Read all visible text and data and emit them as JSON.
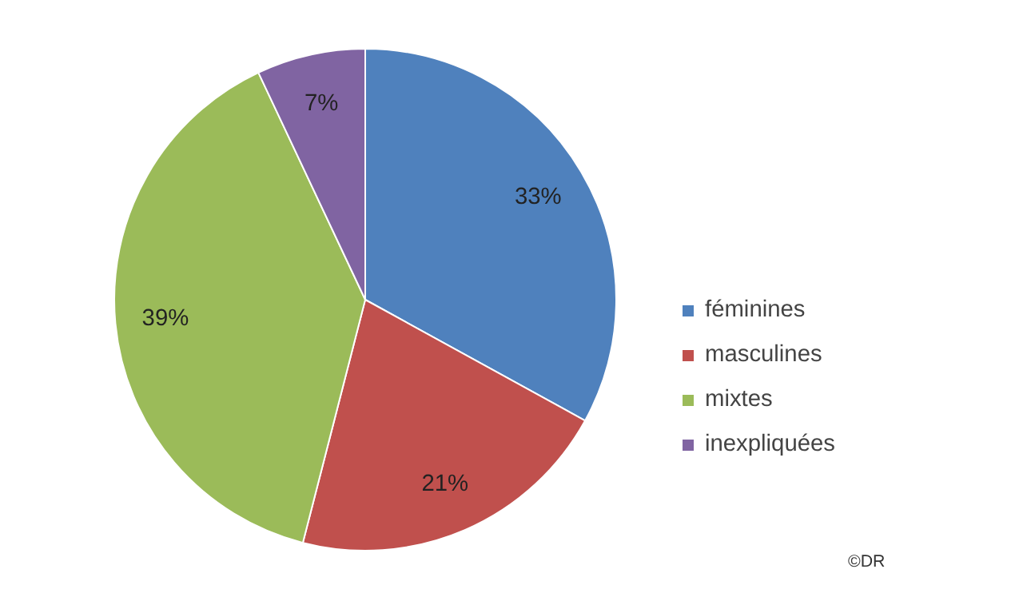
{
  "chart_data": {
    "type": "pie",
    "categories": [
      "féminines",
      "masculines",
      "mixtes",
      "inexpliquées"
    ],
    "values": [
      33,
      21,
      39,
      7
    ],
    "colors": [
      "#4f81bd",
      "#c0504d",
      "#9bbb59",
      "#8064a2"
    ],
    "value_labels": [
      "33%",
      "21%",
      "39%",
      "7%"
    ],
    "legend": "right",
    "annotations": [
      "©DR"
    ]
  }
}
